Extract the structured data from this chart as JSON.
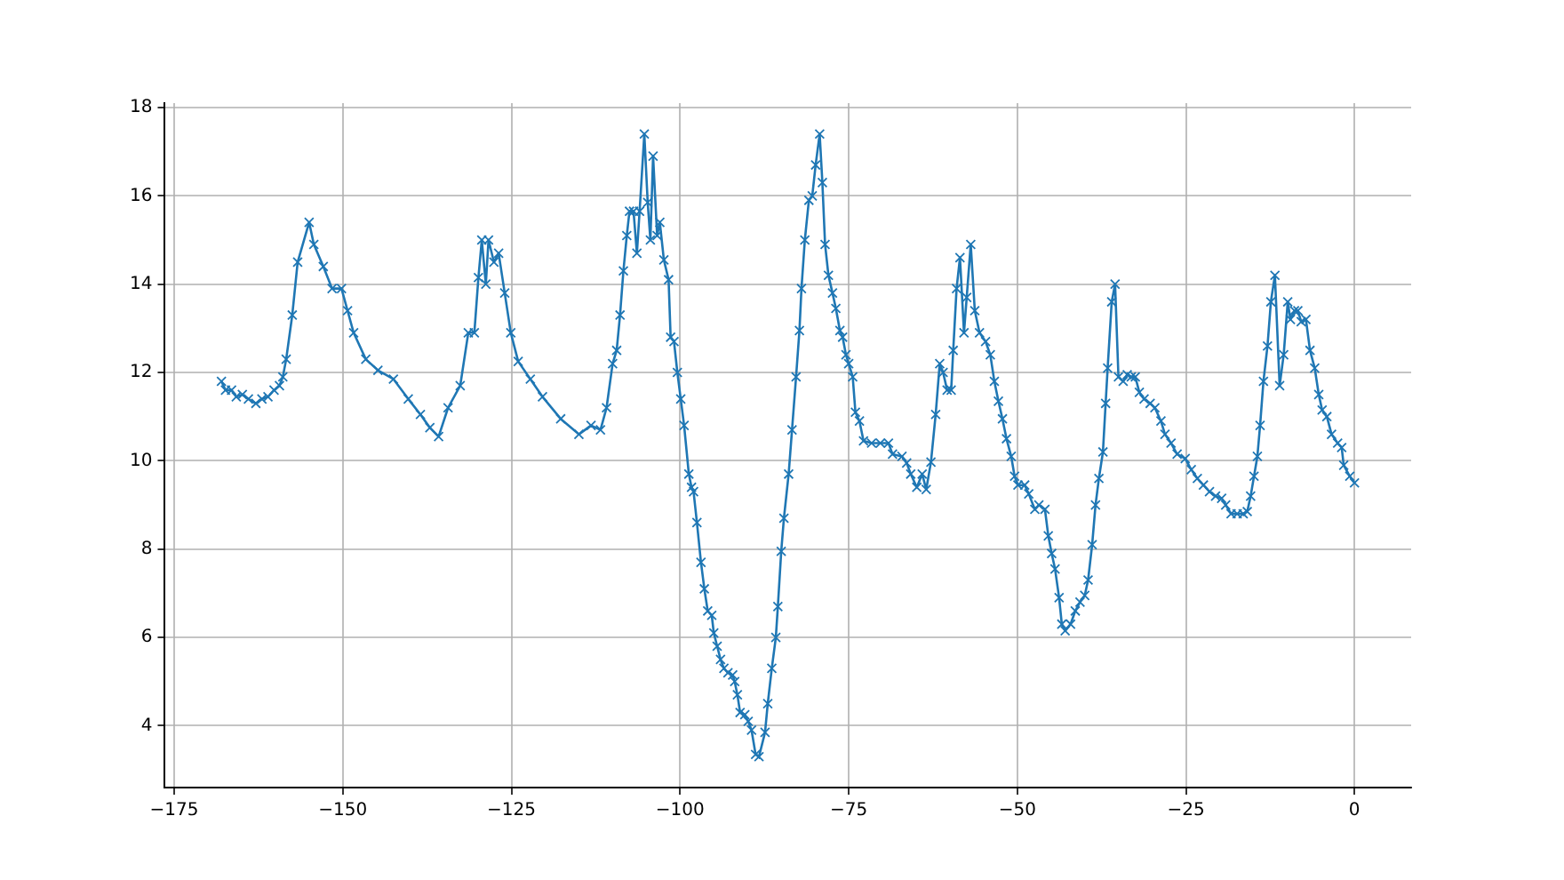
{
  "chart_data": {
    "type": "line",
    "marker": "cross",
    "grid": true,
    "legend": false,
    "xlim": [
      -176.4,
      8.4
    ],
    "ylim": [
      2.6,
      18.1
    ],
    "xticks": [
      -175,
      -150,
      -125,
      -100,
      -75,
      -50,
      -25,
      0
    ],
    "yticks": [
      4,
      6,
      8,
      10,
      12,
      14,
      16,
      18
    ],
    "x": [
      -168,
      -167.4,
      -166.5,
      -165.8,
      -164.9,
      -164,
      -162.9,
      -162,
      -161.1,
      -160.2,
      -159.4,
      -158.9,
      -158.4,
      -157.5,
      -156.7,
      -155,
      -154.3,
      -152.9,
      -151.6,
      -150.2,
      -149.3,
      -148.4,
      -146.6,
      -144.8,
      -142.5,
      -140.3,
      -138.5,
      -137.1,
      -135.8,
      -134.4,
      -132.6,
      -131.4,
      -130.5,
      -129.9,
      -129.4,
      -128.8,
      -128.4,
      -127.6,
      -126.9,
      -126,
      -125.1,
      -124,
      -122.2,
      -120.4,
      -117.7,
      -115,
      -113.2,
      -111.8,
      -110.9,
      -110,
      -109.4,
      -108.9,
      -108.4,
      -107.9,
      -107.5,
      -106.9,
      -106.4,
      -106,
      -105.3,
      -104.8,
      -104.4,
      -104,
      -103.4,
      -103,
      -102.4,
      -101.7,
      -101.4,
      -100.9,
      -100.4,
      -99.9,
      -99.4,
      -98.7,
      -98.3,
      -98,
      -97.5,
      -96.9,
      -96.4,
      -95.9,
      -95.3,
      -95,
      -94.5,
      -94,
      -93.5,
      -92.9,
      -92.2,
      -91.9,
      -91.5,
      -91.1,
      -90.4,
      -89.9,
      -89.4,
      -88.8,
      -88.3,
      -87.4,
      -87,
      -86.4,
      -85.8,
      -85.5,
      -85,
      -84.6,
      -83.9,
      -83.4,
      -82.8,
      -82.3,
      -82,
      -81.5,
      -80.9,
      -80.4,
      -79.9,
      -79.3,
      -78.9,
      -78.5,
      -78,
      -77.4,
      -76.9,
      -76.3,
      -75.9,
      -75.4,
      -75,
      -74.4,
      -74,
      -73.4,
      -72.8,
      -71.6,
      -70.3,
      -69.1,
      -68.5,
      -67.1,
      -66.4,
      -65.8,
      -64.9,
      -64.1,
      -63.5,
      -62.8,
      -62.1,
      -61.5,
      -61,
      -60.4,
      -59.8,
      -59.5,
      -59,
      -58.5,
      -57.9,
      -57.5,
      -56.9,
      -56.3,
      -55.6,
      -54.7,
      -54,
      -53.4,
      -52.8,
      -52.2,
      -51.6,
      -50.9,
      -50.4,
      -49.9,
      -48.9,
      -48.3,
      -47.4,
      -46.8,
      -45.9,
      -45.4,
      -44.9,
      -44.4,
      -43.8,
      -43.4,
      -42.9,
      -42.1,
      -41.4,
      -40.7,
      -40,
      -39.5,
      -38.9,
      -38.4,
      -37.9,
      -37.3,
      -36.9,
      -36.6,
      -36,
      -35.5,
      -35,
      -34.3,
      -33.7,
      -33.1,
      -32.5,
      -31.9,
      -31.2,
      -30.3,
      -29.6,
      -28.7,
      -28.1,
      -27.2,
      -26.3,
      -25.1,
      -24.2,
      -23.3,
      -22.4,
      -21.5,
      -20.6,
      -19.7,
      -19.1,
      -18.3,
      -17.4,
      -16.5,
      -15.9,
      -15.4,
      -14.9,
      -14.4,
      -14,
      -13.5,
      -12.9,
      -12.4,
      -11.8,
      -11.1,
      -10.5,
      -9.9,
      -9.5,
      -8.9,
      -8.4,
      -7.9,
      -7.2,
      -6.6,
      -5.9,
      -5.3,
      -4.8,
      -4.1,
      -3.4,
      -2.5,
      -1.9,
      -1.6,
      -0.7,
      0
    ],
    "series": [
      {
        "color": "#1f77b4",
        "values": [
          11.8,
          11.6,
          11.6,
          11.45,
          11.5,
          11.4,
          11.3,
          11.4,
          11.45,
          11.6,
          11.7,
          11.9,
          12.3,
          13.3,
          14.5,
          15.4,
          14.9,
          14.4,
          13.9,
          13.9,
          13.4,
          12.9,
          12.3,
          12.05,
          11.85,
          11.4,
          11.05,
          10.75,
          10.55,
          11.2,
          11.7,
          12.9,
          12.9,
          14.15,
          15,
          14,
          15,
          14.5,
          14.7,
          13.8,
          12.9,
          12.25,
          11.85,
          11.45,
          10.95,
          10.6,
          10.8,
          10.7,
          11.2,
          12.2,
          12.5,
          13.3,
          14.3,
          15.1,
          15.65,
          15.65,
          14.7,
          15.65,
          17.4,
          15.85,
          15,
          16.9,
          15.1,
          15.4,
          14.55,
          14.1,
          12.8,
          12.7,
          12,
          11.4,
          10.8,
          9.7,
          9.4,
          9.3,
          8.6,
          7.7,
          7.1,
          6.6,
          6.5,
          6.1,
          5.8,
          5.5,
          5.3,
          5.2,
          5.15,
          5,
          4.7,
          4.3,
          4.25,
          4.1,
          3.9,
          3.35,
          3.3,
          3.85,
          4.5,
          5.3,
          6,
          6.7,
          7.95,
          8.7,
          9.7,
          10.7,
          11.9,
          12.95,
          13.9,
          15,
          15.9,
          16,
          16.7,
          17.4,
          16.3,
          14.9,
          14.2,
          13.8,
          13.45,
          12.95,
          12.8,
          12.4,
          12.2,
          11.9,
          11.1,
          10.9,
          10.45,
          10.4,
          10.4,
          10.4,
          10.15,
          10.1,
          9.95,
          9.7,
          9.4,
          9.7,
          9.35,
          9.97,
          11.05,
          12.2,
          12,
          11.6,
          11.6,
          12.5,
          13.9,
          14.6,
          12.9,
          13.7,
          14.9,
          13.4,
          12.9,
          12.7,
          12.4,
          11.8,
          11.35,
          10.95,
          10.5,
          10.1,
          9.65,
          9.45,
          9.45,
          9.25,
          8.9,
          9,
          8.9,
          8.3,
          7.9,
          7.55,
          6.9,
          6.3,
          6.15,
          6.3,
          6.6,
          6.8,
          6.95,
          7.3,
          8.1,
          9,
          9.6,
          10.2,
          11.3,
          12.1,
          13.6,
          14,
          11.9,
          11.8,
          11.95,
          11.9,
          11.9,
          11.55,
          11.4,
          11.3,
          11.2,
          10.9,
          10.6,
          10.4,
          10.15,
          10.05,
          9.8,
          9.6,
          9.45,
          9.3,
          9.2,
          9.15,
          9,
          8.8,
          8.8,
          8.8,
          8.85,
          9.2,
          9.65,
          10.1,
          10.8,
          11.8,
          12.6,
          13.6,
          14.2,
          11.7,
          12.4,
          13.6,
          13.2,
          13.4,
          13.4,
          13.15,
          13.2,
          12.5,
          12.1,
          11.5,
          11.15,
          11,
          10.6,
          10.4,
          10.3,
          9.9,
          9.65,
          9.5
        ]
      }
    ]
  }
}
